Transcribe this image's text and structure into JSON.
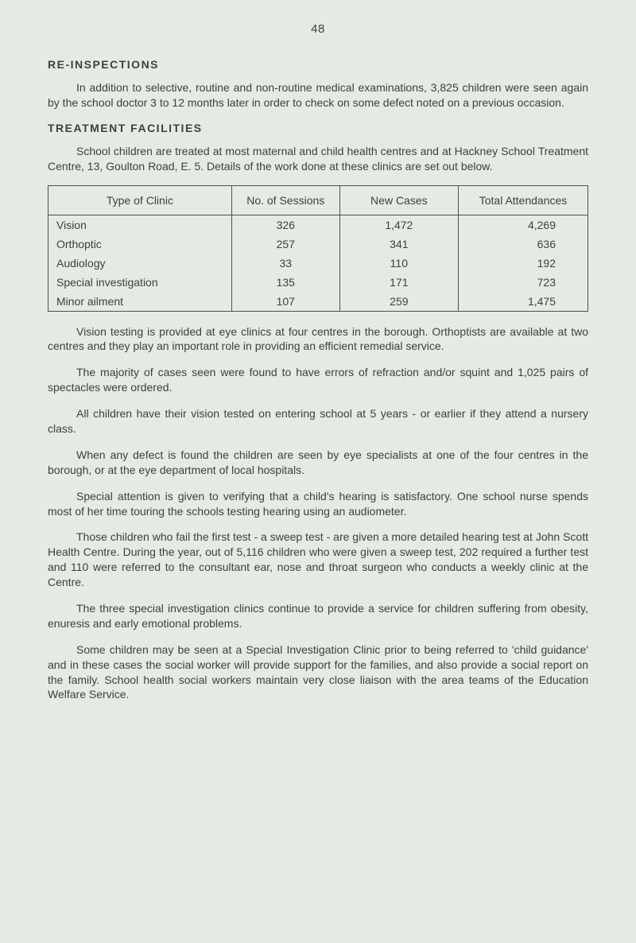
{
  "page_number": "48",
  "colors": {
    "background": "#e5eae2",
    "text": "#3a4340",
    "border": "#4a5450"
  },
  "sections": {
    "reinspections": {
      "heading": "RE-INSPECTIONS",
      "para1": "In addition to selective, routine and non-routine medical examinations, 3,825 children were seen again by the school doctor 3 to 12 months later in order to check on some defect noted on a previous occasion."
    },
    "treatment": {
      "heading": "TREATMENT FACILITIES",
      "para1": "School children are treated at most maternal and child health centres and at Hackney School Treatment Centre, 13, Goulton Road, E. 5. Details of the work done at these clinics are set out below."
    }
  },
  "table": {
    "columns": [
      "Type of Clinic",
      "No. of Sessions",
      "New Cases",
      "Total Attendances"
    ],
    "rows": [
      [
        "Vision",
        "326",
        "1,472",
        "4,269"
      ],
      [
        "Orthoptic",
        "257",
        "341",
        "636"
      ],
      [
        "Audiology",
        "33",
        "110",
        "192"
      ],
      [
        "Special investigation",
        "135",
        "171",
        "723"
      ],
      [
        "Minor ailment",
        "107",
        "259",
        "1,475"
      ]
    ]
  },
  "body_paragraphs": {
    "p1": "Vision testing is provided at eye clinics at four centres in the borough. Orthoptists are available at two centres and they play an important role in providing an efficient remedial service.",
    "p2": "The majority of cases seen were found to have errors of refraction and/or squint and 1,025 pairs of spectacles were ordered.",
    "p3": "All children have their vision tested on entering school at 5 years - or earlier if they attend a nursery class.",
    "p4": "When any defect is found the children are seen by eye specialists at one of the four centres in the borough, or at the eye department of local hospitals.",
    "p5": "Special attention is given to verifying that a child's hearing is satisfactory. One school nurse spends most of her time touring the schools testing hearing using an audiometer.",
    "p6": "Those children who fail the first test - a sweep test - are given a more detailed hearing test at John Scott Health Centre. During the year, out of 5,116 children who were given a sweep test, 202 required a further test and 110 were referred to the consultant ear, nose and throat surgeon who conducts a weekly clinic at the Centre.",
    "p7": "The three special investigation clinics continue to provide a service for children suffering from obesity, enuresis and early emotional problems.",
    "p8": "Some children may be seen at a Special Investigation Clinic prior to being referred to 'child guidance' and in these cases the social worker will provide support for the families, and also provide a social report on the family. School health social workers maintain very close liaison with the area teams of the Education Welfare Service."
  }
}
